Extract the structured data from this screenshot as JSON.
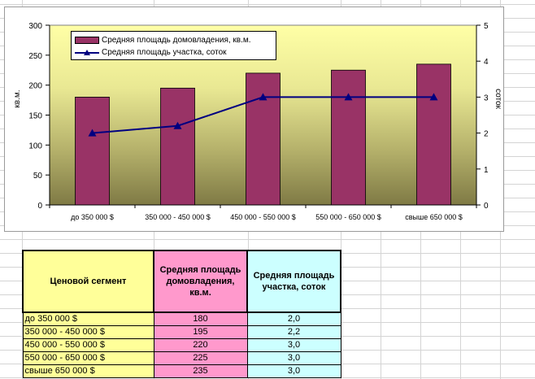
{
  "chart_data": {
    "type": "bar",
    "categories": [
      "до 350 000 $",
      "350 000 - 450 000 $",
      "450 000 - 550 000 $",
      "550 000 - 650 000 $",
      "свыше 650 000 $"
    ],
    "series": [
      {
        "name": "Средняя площадь домовладения, кв.м.",
        "type": "bar",
        "axis": "left",
        "values": [
          180,
          195,
          220,
          225,
          235
        ],
        "color": "#993366"
      },
      {
        "name": "Средняя площадь участка, соток",
        "type": "line",
        "axis": "right",
        "values": [
          2.0,
          2.2,
          3.0,
          3.0,
          3.0
        ],
        "color": "#000080"
      }
    ],
    "y_left": {
      "label": "кв.м.",
      "ylim": [
        0,
        300
      ],
      "ticks": [
        "0",
        "50",
        "100",
        "150",
        "200",
        "250",
        "300"
      ]
    },
    "y_right": {
      "label": "соток",
      "ylim": [
        0,
        5
      ],
      "ticks": [
        "0",
        "1",
        "2",
        "3",
        "4",
        "5"
      ]
    },
    "legend_position": "top-left",
    "plot_background": "gradient yellow to olive"
  },
  "table": {
    "headers": [
      "Ценовой сегмент",
      "Средняя площадь домовладения, кв.м.",
      "Средняя площадь участка, соток"
    ],
    "rows": [
      [
        "до 350 000 $",
        "180",
        "2,0"
      ],
      [
        "350 000 - 450 000 $",
        "195",
        "2,2"
      ],
      [
        "450 000 - 550 000 $",
        "220",
        "3,0"
      ],
      [
        "550 000 - 650 000 $",
        "225",
        "3,0"
      ],
      [
        "свыше 650 000 $",
        "235",
        "3,0"
      ]
    ]
  },
  "colors": {
    "bar": "#993366",
    "line": "#000080",
    "header_c1": "#ffff99",
    "header_c2": "#ff99cc",
    "header_c3": "#ccffff"
  }
}
